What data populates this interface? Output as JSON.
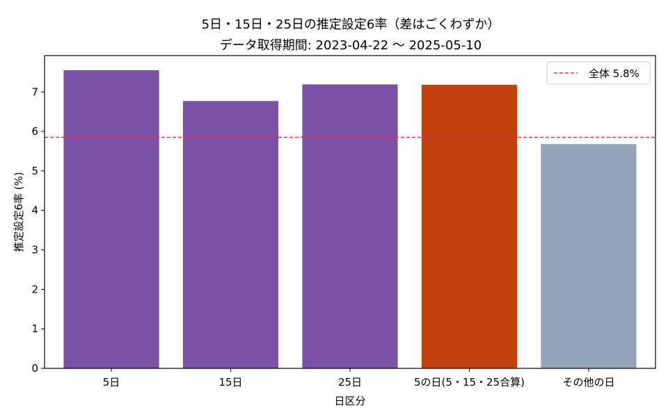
{
  "chart_data": {
    "type": "bar",
    "title": "5日・15日・25日の推定設定6率（差はごくわずか）",
    "subtitle": "データ取得期間: 2023-04-22 〜 2025-05-10",
    "xlabel": "日区分",
    "ylabel": "推定設定6率 (%)",
    "categories": [
      "5日",
      "15日",
      "25日",
      "5の日(5・15・25合算)",
      "その他の日"
    ],
    "values": [
      7.55,
      6.77,
      7.19,
      7.18,
      5.68
    ],
    "bar_colors": [
      "#7a51a6",
      "#7a51a6",
      "#7a51a6",
      "#c2410c",
      "#94a3b8"
    ],
    "ylim": [
      0,
      7.92
    ],
    "yticks": [
      0,
      1,
      2,
      3,
      4,
      5,
      6,
      7
    ],
    "reference_line": {
      "value": 5.85,
      "label": "全体 5.8%",
      "color": "#dc2f4a",
      "style": "dashed"
    },
    "legend_position": "top-right",
    "grid": false
  }
}
